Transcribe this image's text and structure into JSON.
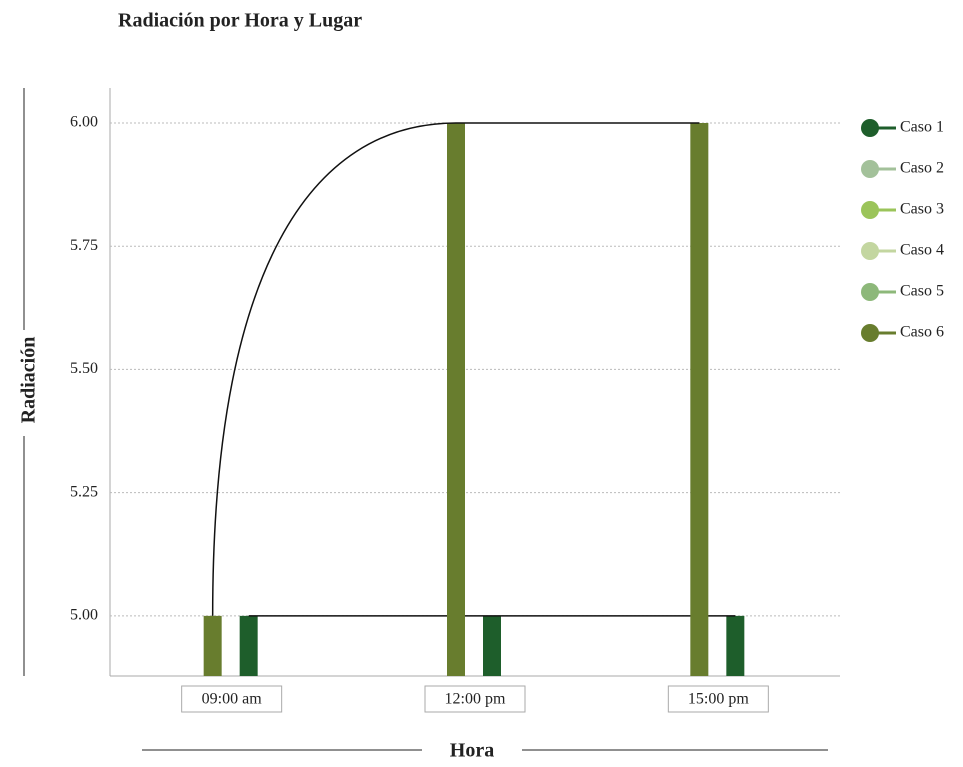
{
  "chart_data": {
    "type": "bar",
    "title": "Radiación por Hora y Lugar",
    "x_label": "Hora",
    "y_label": "Radiación",
    "categories": [
      "09:00 am",
      "12:00 pm",
      "15:00 pm"
    ],
    "series": [
      {
        "name": "Caso 1",
        "color": "#1e5e2b",
        "values": [
          5,
          5,
          5
        ]
      },
      {
        "name": "Caso 2",
        "color": "#a3c19a",
        "values": [
          null,
          null,
          null
        ]
      },
      {
        "name": "Caso 3",
        "color": "#9bc45a",
        "values": [
          null,
          null,
          null
        ]
      },
      {
        "name": "Caso 4",
        "color": "#c3d6a0",
        "values": [
          null,
          null,
          null
        ]
      },
      {
        "name": "Caso 5",
        "color": "#8db87a",
        "values": [
          null,
          null,
          null
        ]
      },
      {
        "name": "Caso 6",
        "color": "#687d2e",
        "values": [
          5,
          6,
          6
        ]
      }
    ],
    "ylim": [
      4.878,
      6.071
    ],
    "yticks": [
      {
        "value": 5,
        "label": "5.00"
      },
      {
        "value": 5.25,
        "label": "5.25"
      },
      {
        "value": 5.5,
        "label": "5.50"
      },
      {
        "value": 5.75,
        "label": "5.75"
      },
      {
        "value": 6,
        "label": "6.00"
      }
    ],
    "grid": true,
    "legend": "right"
  }
}
